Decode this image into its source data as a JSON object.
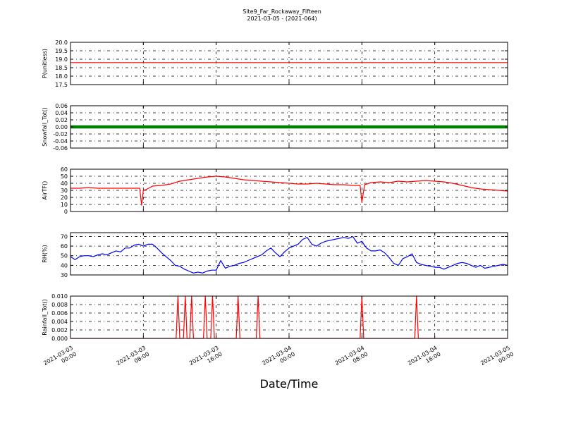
{
  "title": "Site9_Far_Rockaway_Fifteen",
  "subtitle": "2021-03-05 - (2021-064)",
  "xlabel": "Date/Time",
  "x_ticks": [
    [
      "2021-03-03",
      "00:00"
    ],
    [
      "2021-03-03",
      "08:00"
    ],
    [
      "2021-03-03",
      "16:00"
    ],
    [
      "2021-03-04",
      "00:00"
    ],
    [
      "2021-03-04",
      "08:00"
    ],
    [
      "2021-03-04",
      "16:00"
    ],
    [
      "2021-03-05",
      "00:00"
    ]
  ],
  "x_unit": "hours since 2021-03-03 00:00",
  "chart_data": [
    {
      "type": "line",
      "ylabel": "P(unitless)",
      "ylim": [
        17.5,
        20.0
      ],
      "yticks": [
        "17.5",
        "18.0",
        "18.5",
        "19.0",
        "19.5",
        "20.0"
      ],
      "ytick_values": [
        17.5,
        18.0,
        18.5,
        19.0,
        19.5,
        20.0
      ],
      "color": "#ff0000",
      "style": "line",
      "x": [
        0,
        48
      ],
      "y": [
        18.8,
        18.8
      ]
    },
    {
      "type": "scatter",
      "ylabel": "Snowfall_Tot()",
      "ylim": [
        -0.06,
        0.06
      ],
      "yticks": [
        "-0.06",
        "-0.04",
        "-0.02",
        "0.00",
        "0.02",
        "0.04",
        "0.06"
      ],
      "ytick_values": [
        -0.06,
        -0.04,
        -0.02,
        0.0,
        0.02,
        0.04,
        0.06
      ],
      "color": "#008000",
      "style": "thick",
      "x": [
        0,
        48
      ],
      "y": [
        0,
        0
      ]
    },
    {
      "type": "line",
      "ylabel": "AirTF()",
      "ylim": [
        0,
        60
      ],
      "yticks": [
        "0",
        "10",
        "20",
        "30",
        "40",
        "50",
        "60"
      ],
      "ytick_values": [
        0,
        10,
        20,
        30,
        40,
        50,
        60
      ],
      "color": "#ff0000",
      "style": "line",
      "x": [
        0,
        1,
        2,
        3,
        4,
        5,
        6,
        7,
        7.6,
        7.8,
        8.0,
        8.3,
        9,
        10,
        11,
        12,
        13,
        14,
        15,
        16,
        17,
        18,
        19,
        20,
        21,
        22,
        23,
        24,
        25,
        26,
        27,
        28,
        29,
        30,
        31,
        31.8,
        32.0,
        32.3,
        33,
        34,
        35,
        36,
        37,
        38,
        39,
        40,
        41,
        42,
        43,
        44,
        45,
        46,
        47,
        48
      ],
      "y": [
        33,
        33,
        34,
        33,
        33,
        33,
        33,
        33,
        33,
        9,
        30,
        31,
        36,
        37,
        39,
        43,
        45,
        47,
        49,
        50,
        49,
        47,
        45,
        44,
        43,
        42,
        41,
        40,
        39,
        39,
        40,
        39,
        38,
        38,
        37,
        37,
        13,
        38,
        41,
        42,
        41,
        43,
        42,
        43,
        44,
        43,
        42,
        40,
        37,
        34,
        32,
        31,
        30,
        29
      ]
    },
    {
      "type": "line",
      "ylabel": "RH(%)",
      "ylim": [
        30,
        74
      ],
      "yticks": [
        "30",
        "40",
        "50",
        "60",
        "70"
      ],
      "ytick_values": [
        30,
        40,
        50,
        60,
        70
      ],
      "color": "#0000ff",
      "style": "line",
      "x": [
        0,
        0.5,
        1,
        1.5,
        2,
        2.5,
        3,
        3.5,
        4,
        4.5,
        5,
        5.5,
        6,
        6.5,
        7,
        7.5,
        8,
        8.5,
        9,
        9.5,
        10,
        10.5,
        11,
        11.5,
        12,
        12.5,
        13,
        13.5,
        14,
        14.5,
        15,
        15.5,
        16,
        16.5,
        17,
        17.5,
        18,
        18.5,
        19,
        19.5,
        20,
        20.5,
        21,
        21.5,
        22,
        22.5,
        23,
        23.5,
        24,
        24.5,
        25,
        25.5,
        26,
        26.5,
        27,
        27.5,
        28,
        28.5,
        29,
        29.5,
        30,
        30.5,
        31,
        31.5,
        32,
        32.5,
        33,
        33.5,
        34,
        34.5,
        35,
        35.5,
        36,
        36.5,
        37,
        37.5,
        38,
        38.5,
        39,
        39.5,
        40,
        40.5,
        41,
        41.5,
        42,
        42.5,
        43,
        43.5,
        44,
        44.5,
        45,
        45.5,
        46,
        46.5,
        47,
        47.5,
        48
      ],
      "y": [
        49,
        46,
        49,
        50,
        50,
        49,
        51,
        52,
        51,
        53,
        55,
        54,
        58,
        58,
        61,
        62,
        60,
        62,
        62,
        58,
        53,
        49,
        45,
        40,
        39,
        36,
        34,
        32,
        33,
        32,
        34,
        35,
        35,
        45,
        37,
        39,
        40,
        42,
        43,
        45,
        47,
        49,
        51,
        55,
        58,
        53,
        49,
        54,
        58,
        60,
        62,
        67,
        69,
        62,
        60,
        63,
        65,
        66,
        67,
        68,
        69,
        68,
        70,
        63,
        65,
        58,
        55,
        55,
        56,
        53,
        48,
        42,
        40,
        47,
        49,
        52,
        43,
        41,
        40,
        39,
        38,
        38,
        36,
        38,
        40,
        42,
        43,
        42,
        40,
        38,
        40,
        37,
        38,
        39,
        40,
        41,
        40
      ]
    },
    {
      "type": "line",
      "ylabel": "Rainfall_Tot()",
      "ylim": [
        0,
        0.01
      ],
      "yticks": [
        "0.000",
        "0.002",
        "0.004",
        "0.006",
        "0.008",
        "0.010"
      ],
      "ytick_values": [
        0,
        0.002,
        0.004,
        0.006,
        0.008,
        0.01
      ],
      "color": "#ff0000",
      "style": "line",
      "x": [
        0,
        11.6,
        11.8,
        12.0,
        12.4,
        12.6,
        12.8,
        13.1,
        13.3,
        13.5,
        14.6,
        14.8,
        15.0,
        15.4,
        15.6,
        15.8,
        18.2,
        18.4,
        18.6,
        20.4,
        20.6,
        20.8,
        31.8,
        32.0,
        32.2,
        37.8,
        38.0,
        38.2,
        48
      ],
      "y": [
        0,
        0,
        0.01,
        0,
        0,
        0.01,
        0,
        0,
        0.01,
        0,
        0,
        0.01,
        0,
        0,
        0.01,
        0,
        0,
        0.01,
        0,
        0,
        0.01,
        0,
        0,
        0.01,
        0,
        0,
        0.01,
        0,
        0
      ]
    }
  ]
}
